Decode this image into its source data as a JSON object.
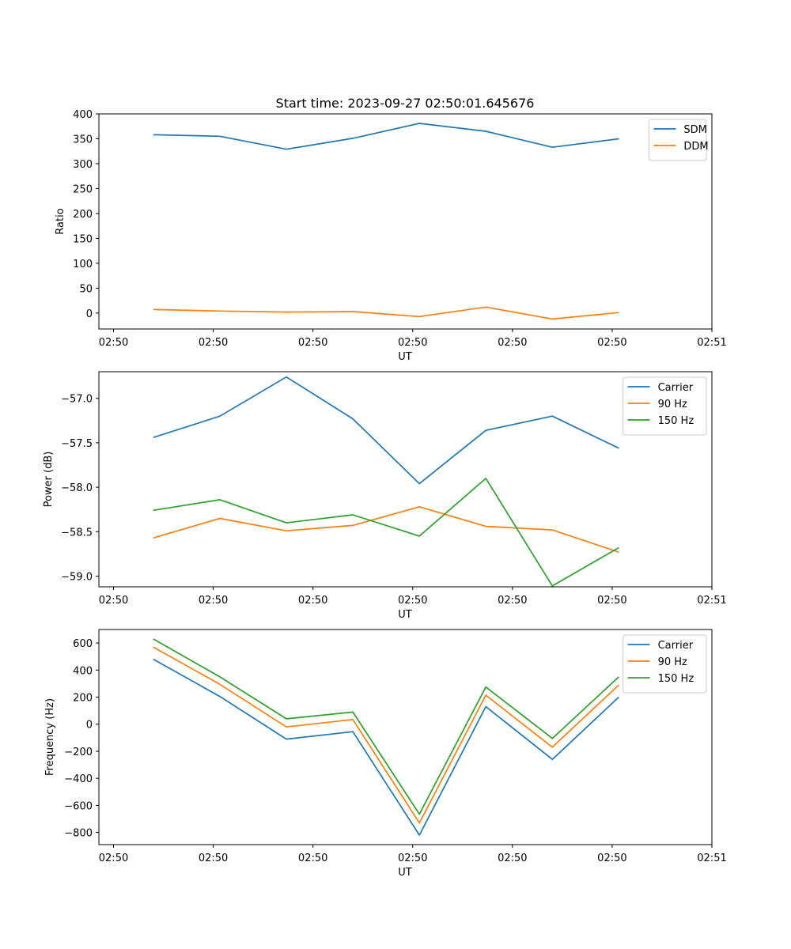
{
  "chart_data": [
    {
      "type": "line",
      "title": "Start time: 2023-09-27 02:50:01.645676",
      "xlabel": "UT",
      "ylabel": "Ratio",
      "x": [
        1,
        2,
        3,
        4,
        5,
        6,
        7,
        8
      ],
      "xlim": [
        0.18,
        9.4
      ],
      "xticks": [
        0.4,
        1.9,
        3.4,
        4.9,
        6.4,
        7.9,
        9.4
      ],
      "xticklabels": [
        "02:50",
        "02:50",
        "02:50",
        "02:50",
        "02:50",
        "02:50",
        "02:51"
      ],
      "ylim": [
        -32,
        400
      ],
      "yticks": [
        0,
        50,
        100,
        150,
        200,
        250,
        300,
        350,
        400
      ],
      "yticklabels": [
        "0",
        "50",
        "100",
        "150",
        "200",
        "250",
        "300",
        "350",
        "400"
      ],
      "legend": "top-right",
      "series": [
        {
          "name": "SDM",
          "color": "#1f77b4",
          "values": [
            358,
            355,
            329,
            351,
            381,
            365,
            333,
            350
          ]
        },
        {
          "name": "DDM",
          "color": "#ff7f0e",
          "values": [
            7,
            4,
            2,
            3,
            -7,
            12,
            -12,
            1
          ]
        }
      ]
    },
    {
      "type": "line",
      "title": "",
      "xlabel": "UT",
      "ylabel": "Power (dB)",
      "x": [
        1,
        2,
        3,
        4,
        5,
        6,
        7,
        8
      ],
      "xlim": [
        0.18,
        9.4
      ],
      "xticks": [
        0.4,
        1.9,
        3.4,
        4.9,
        6.4,
        7.9,
        9.4
      ],
      "xticklabels": [
        "02:50",
        "02:50",
        "02:50",
        "02:50",
        "02:50",
        "02:50",
        "02:51"
      ],
      "ylim": [
        -59.12,
        -56.7
      ],
      "yticks": [
        -57.0,
        -57.5,
        -58.0,
        -58.5,
        -59.0
      ],
      "yticklabels": [
        "−57.0",
        "−57.5",
        "−58.0",
        "−58.5",
        "−59.0"
      ],
      "legend": "top-right",
      "series": [
        {
          "name": "Carrier",
          "color": "#1f77b4",
          "values": [
            -57.44,
            -57.2,
            -56.76,
            -57.23,
            -57.96,
            -57.36,
            -57.2,
            -57.56
          ]
        },
        {
          "name": "90 Hz",
          "color": "#ff7f0e",
          "values": [
            -58.57,
            -58.35,
            -58.49,
            -58.43,
            -58.22,
            -58.44,
            -58.48,
            -58.73
          ]
        },
        {
          "name": "150 Hz",
          "color": "#2ca02c",
          "values": [
            -58.26,
            -58.14,
            -58.4,
            -58.31,
            -58.55,
            -57.9,
            -59.11,
            -58.68
          ]
        }
      ]
    },
    {
      "type": "line",
      "title": "",
      "xlabel": "UT",
      "ylabel": "Frequency (Hz)",
      "x": [
        1,
        2,
        3,
        4,
        5,
        6,
        7,
        8
      ],
      "xlim": [
        0.18,
        9.4
      ],
      "xticks": [
        0.4,
        1.9,
        3.4,
        4.9,
        6.4,
        7.9,
        9.4
      ],
      "xticklabels": [
        "02:50",
        "02:50",
        "02:50",
        "02:50",
        "02:50",
        "02:50",
        "02:51"
      ],
      "ylim": [
        -890,
        700
      ],
      "yticks": [
        600,
        400,
        200,
        0,
        -200,
        -400,
        -600,
        -800
      ],
      "yticklabels": [
        "600",
        "400",
        "200",
        "0",
        "−200",
        "−400",
        "−600",
        "−800"
      ],
      "legend": "top-right",
      "series": [
        {
          "name": "Carrier",
          "color": "#1f77b4",
          "values": [
            480,
            205,
            -110,
            -55,
            -820,
            130,
            -260,
            200
          ]
        },
        {
          "name": "90 Hz",
          "color": "#ff7f0e",
          "values": [
            570,
            295,
            -20,
            35,
            -730,
            215,
            -170,
            290
          ]
        },
        {
          "name": "150 Hz",
          "color": "#2ca02c",
          "values": [
            630,
            350,
            40,
            90,
            -665,
            275,
            -105,
            350
          ]
        }
      ]
    }
  ]
}
